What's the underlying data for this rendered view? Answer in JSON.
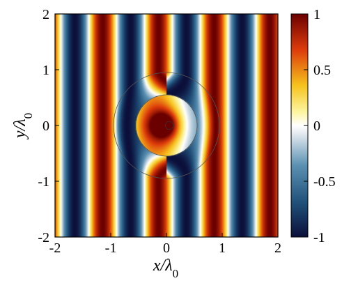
{
  "chart_data": {
    "type": "heatmap",
    "description_units": "wavelengths",
    "xlabel_parts": [
      "x/",
      "λ",
      "0"
    ],
    "ylabel_parts": [
      "y/",
      "λ",
      "0"
    ],
    "xlim": [
      -2,
      2
    ],
    "ylim": [
      -2,
      2
    ],
    "xticks": [
      "-2",
      "-1",
      "0",
      "1",
      "2"
    ],
    "yticks": [
      "-2",
      "-1",
      "0",
      "1",
      "2"
    ],
    "colorbar": {
      "range": [
        -1,
        1
      ],
      "ticks": [
        "1",
        "0.5",
        "0",
        "-0.5",
        "-1"
      ],
      "colormap": "blue-white-yellow-red",
      "colors": [
        "#0b0f3a",
        "#1f4f78",
        "#5a90b2",
        "#e9eef2",
        "#ffffff",
        "#fdf5a0",
        "#f6c21c",
        "#dd3b0b",
        "#6b0000"
      ]
    },
    "field": {
      "pattern": "plane wave along x, cloak shell bending wavefronts",
      "wavelength": 1,
      "outer_radius": 0.95,
      "middle_radius": 0.55,
      "inner_radius": 0.07,
      "hotspot_center": [
        0.05,
        0
      ]
    }
  }
}
